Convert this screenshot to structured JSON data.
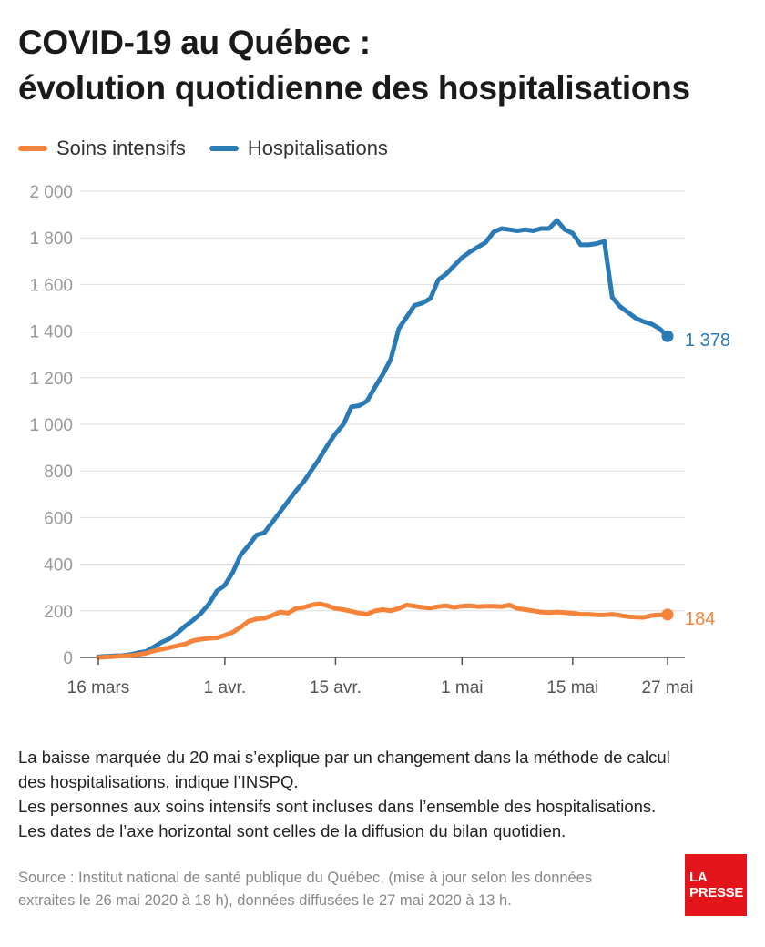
{
  "title": {
    "line1": "COVID-19 au Québec :",
    "line2": "évolution quotidienne des hospitalisations"
  },
  "legend": [
    {
      "label": "Soins intensifs",
      "color": "#f5833a"
    },
    {
      "label": "Hospitalisations",
      "color": "#2a7ab5"
    }
  ],
  "chart_data": {
    "type": "line",
    "x_axis": {
      "ticks": [
        {
          "label": "16 mars",
          "day": 0
        },
        {
          "label": "1 avr.",
          "day": 16
        },
        {
          "label": "15 avr.",
          "day": 30
        },
        {
          "label": "1 mai",
          "day": 46
        },
        {
          "label": "15 mai",
          "day": 60
        },
        {
          "label": "27 mai",
          "day": 72
        }
      ],
      "range_days": [
        0,
        72
      ]
    },
    "y_axis": {
      "ticks": [
        "0",
        "200",
        "400",
        "600",
        "800",
        "1 000",
        "1 200",
        "1 400",
        "1 600",
        "1 800",
        "2 000"
      ],
      "range": [
        0,
        2000
      ]
    },
    "grid": true,
    "legend_position": "top-left",
    "series": [
      {
        "name": "Hospitalisations",
        "color": "#2a7ab5",
        "end_label": "1 378",
        "values": [
          3,
          5,
          7,
          8,
          12,
          20,
          25,
          45,
          65,
          80,
          105,
          135,
          160,
          190,
          230,
          285,
          310,
          365,
          440,
          480,
          525,
          535,
          580,
          625,
          670,
          715,
          755,
          805,
          855,
          910,
          960,
          1000,
          1075,
          1080,
          1100,
          1160,
          1215,
          1280,
          1410,
          1460,
          1510,
          1520,
          1540,
          1620,
          1645,
          1680,
          1715,
          1740,
          1760,
          1780,
          1825,
          1840,
          1835,
          1830,
          1835,
          1830,
          1840,
          1840,
          1875,
          1835,
          1820,
          1770,
          1770,
          1775,
          1785,
          1545,
          1505,
          1480,
          1455,
          1440,
          1430,
          1410,
          1378
        ]
      },
      {
        "name": "Soins intensifs",
        "color": "#f5833a",
        "end_label": "184",
        "values": [
          0,
          2,
          4,
          6,
          8,
          12,
          18,
          28,
          35,
          42,
          50,
          58,
          72,
          78,
          82,
          84,
          95,
          108,
          130,
          155,
          165,
          168,
          180,
          195,
          190,
          210,
          215,
          225,
          230,
          222,
          210,
          205,
          198,
          190,
          185,
          200,
          205,
          200,
          210,
          225,
          220,
          215,
          212,
          218,
          222,
          215,
          220,
          222,
          218,
          220,
          220,
          218,
          225,
          210,
          205,
          200,
          195,
          192,
          195,
          192,
          190,
          185,
          185,
          183,
          182,
          185,
          180,
          175,
          173,
          172,
          180,
          182,
          184
        ]
      }
    ]
  },
  "notes": [
    "La baisse marquée du 20 mai s’explique par un changement dans la méthode de calcul",
    "des hospitalisations, indique l’INSPQ.",
    "Les personnes aux soins intensifs sont incluses dans l’ensemble des hospitalisations.",
    "Les dates de l’axe horizontal sont celles de la diffusion du bilan quotidien."
  ],
  "source": [
    "Source : Institut national de santé publique du Québec, (mise à jour selon les données",
    "extraites le 26 mai 2020 à 18 h), données diffusées le 27 mai 2020 à 13 h."
  ],
  "logo": {
    "line1": "LA",
    "line2": "PRESSE"
  }
}
